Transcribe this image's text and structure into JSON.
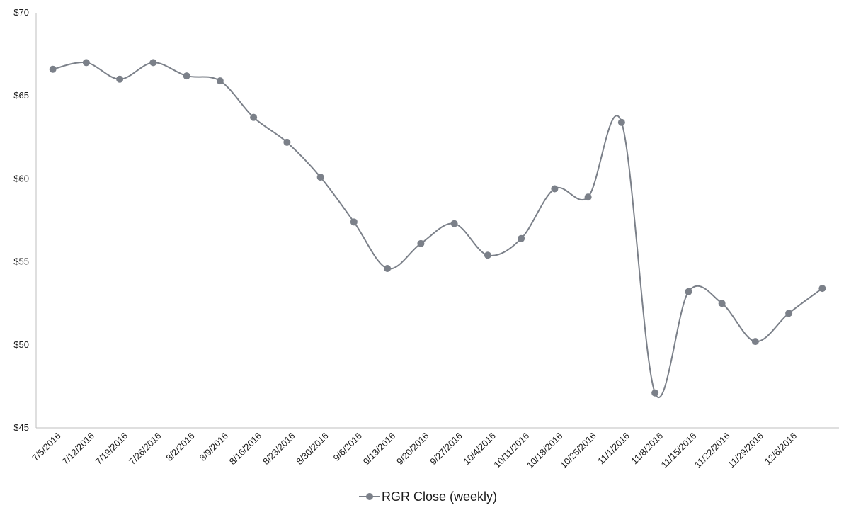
{
  "chart_data": {
    "type": "line",
    "title": "",
    "xlabel": "",
    "ylabel": "",
    "ylim": [
      45,
      70
    ],
    "yticks": [
      "$45",
      "$50",
      "$55",
      "$60",
      "$65",
      "$70"
    ],
    "ytick_values": [
      45,
      50,
      55,
      60,
      65,
      70
    ],
    "categories": [
      "7/5/2016",
      "7/12/2016",
      "7/19/2016",
      "7/26/2016",
      "8/2/2016",
      "8/9/2016",
      "8/16/2016",
      "8/23/2016",
      "8/30/2016",
      "9/6/2016",
      "9/13/2016",
      "9/20/2016",
      "9/27/2016",
      "10/4/2016",
      "10/11/2016",
      "10/18/2016",
      "10/25/2016",
      "11/1/2016",
      "11/8/2016",
      "11/15/2016",
      "11/22/2016",
      "11/29/2016",
      "12/6/2016",
      ""
    ],
    "series": [
      {
        "name": "RGR Close (weekly)",
        "color": "#7b8089",
        "values": [
          66.6,
          67.0,
          66.0,
          67.0,
          66.2,
          65.9,
          63.7,
          62.2,
          60.1,
          57.4,
          54.6,
          56.1,
          57.3,
          55.4,
          56.4,
          59.4,
          58.9,
          63.4,
          47.1,
          53.2,
          52.5,
          50.2,
          51.9,
          53.4
        ]
      }
    ],
    "grid": false,
    "legend_position": "bottom"
  }
}
